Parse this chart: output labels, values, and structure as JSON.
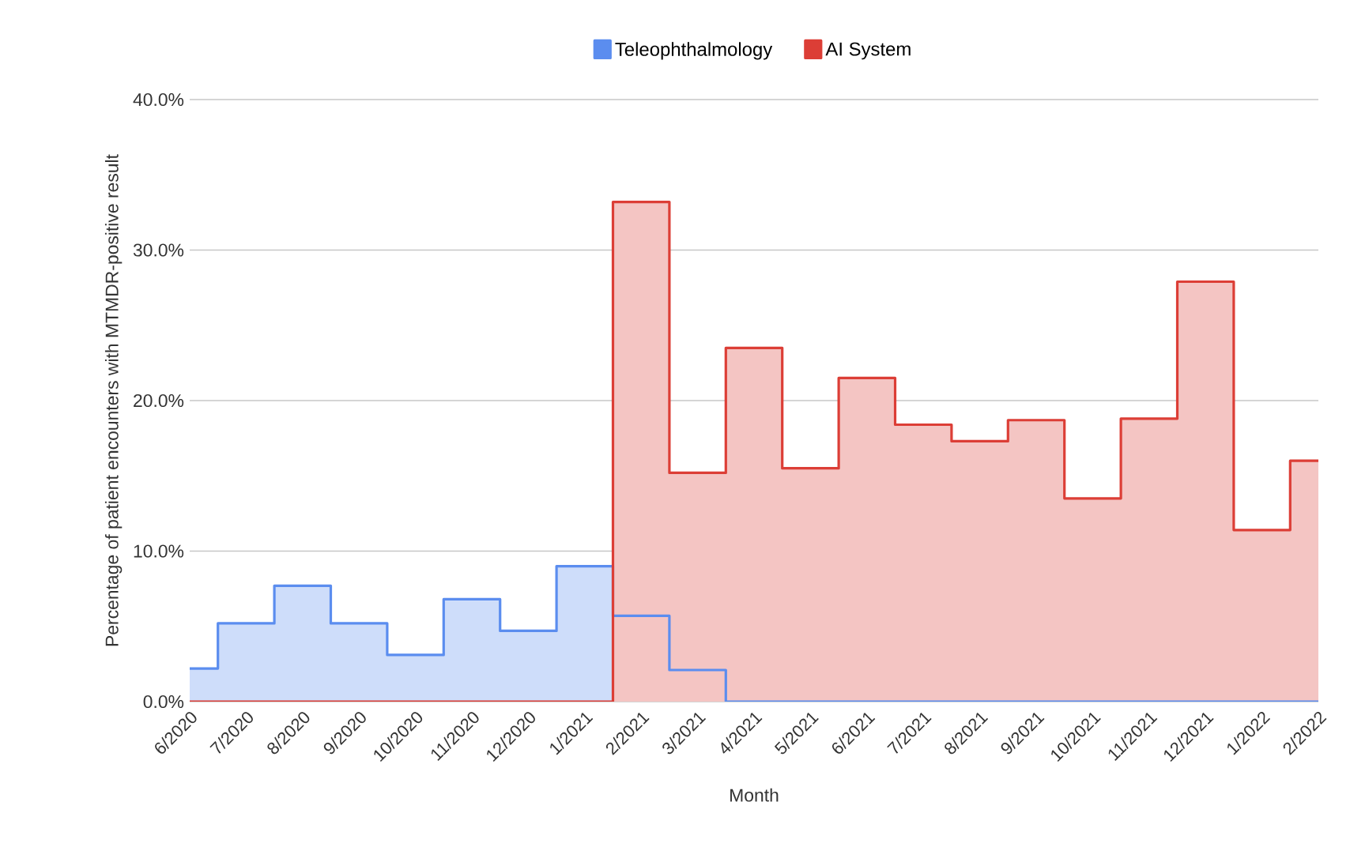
{
  "chart_data": {
    "type": "step",
    "xlabel": "Month",
    "ylabel": "Percentage of patient encounters with MTMDR-positive result",
    "categories": [
      "6/2020",
      "7/2020",
      "8/2020",
      "9/2020",
      "10/2020",
      "11/2020",
      "12/2020",
      "1/2021",
      "2/2021",
      "3/2021",
      "4/2021",
      "5/2021",
      "6/2021",
      "7/2021",
      "8/2021",
      "9/2021",
      "10/2021",
      "11/2021",
      "12/2021",
      "1/2022",
      "2/2022"
    ],
    "series": [
      {
        "name": "Teleophthalmology",
        "color": "#5b8def",
        "values": [
          2.2,
          5.2,
          7.7,
          5.2,
          3.1,
          6.8,
          4.7,
          9.0,
          5.7,
          2.1,
          0,
          0,
          0,
          0,
          0,
          0,
          0,
          0,
          0,
          0,
          0
        ]
      },
      {
        "name": "AI System",
        "color": "#dc3e36",
        "values": [
          0,
          0,
          0,
          0,
          0,
          0,
          0,
          0,
          33.2,
          15.2,
          23.5,
          15.5,
          21.5,
          18.4,
          17.3,
          18.7,
          13.5,
          18.8,
          27.9,
          11.4,
          16.0
        ]
      }
    ],
    "ylim": [
      0,
      40
    ],
    "yticks": [
      {
        "value": 0,
        "label": "0.0%"
      },
      {
        "value": 10,
        "label": "10.0%"
      },
      {
        "value": 20,
        "label": "20.0%"
      },
      {
        "value": 30,
        "label": "30.0%"
      },
      {
        "value": 40,
        "label": "40.0%"
      }
    ],
    "grid": "y",
    "legend": "top"
  }
}
